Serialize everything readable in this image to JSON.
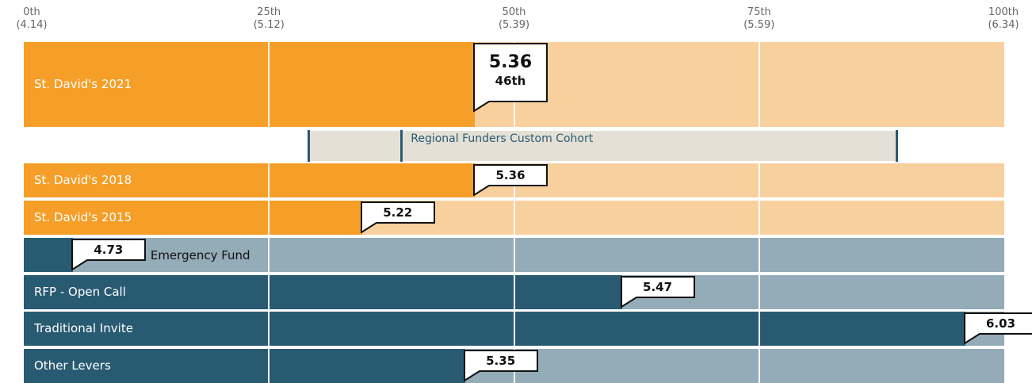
{
  "colors": {
    "orange_fill": "#f59e28",
    "orange_track": "#f8d09e",
    "blue_fill": "#285a72",
    "blue_track": "#94abb8",
    "cohort_band": "#e4e0d6",
    "cohort_text": "#2a5b73"
  },
  "chart_data": {
    "type": "bar",
    "scale": "percentile",
    "xlim": [
      0,
      100
    ],
    "ticks": [
      {
        "percentile": 0,
        "label": "0th",
        "value_label": "(4.14)"
      },
      {
        "percentile": 25,
        "label": "25th",
        "value_label": "(5.12)"
      },
      {
        "percentile": 50,
        "label": "50th",
        "value_label": "(5.39)"
      },
      {
        "percentile": 75,
        "label": "75th",
        "value_label": "(5.59)"
      },
      {
        "percentile": 100,
        "label": "100th",
        "value_label": "(6.34)"
      }
    ],
    "rows": [
      {
        "label": "St. David's 2021",
        "value": "5.36",
        "percentile": 46,
        "percentile_label": "46th",
        "color": "orange",
        "highlight": true
      },
      {
        "label": "St. David's 2018",
        "value": "5.36",
        "percentile": 46,
        "color": "orange"
      },
      {
        "label": "St. David's 2015",
        "value": "5.22",
        "percentile": 34.5,
        "color": "orange"
      },
      {
        "label": "",
        "value": "4.73",
        "percentile": 5,
        "color": "blue",
        "outside_label": "Emergency Fund"
      },
      {
        "label": "RFP - Open Call",
        "value": "5.47",
        "percentile": 61,
        "color": "blue"
      },
      {
        "label": "Traditional Invite",
        "value": "6.03",
        "percentile": 96,
        "color": "blue"
      },
      {
        "label": "Other Levers",
        "value": "5.35",
        "percentile": 45,
        "color": "blue"
      }
    ],
    "cohort": {
      "label": "Regional Funders Custom Cohort",
      "range": [
        29,
        89
      ],
      "marker": 38.5
    }
  }
}
